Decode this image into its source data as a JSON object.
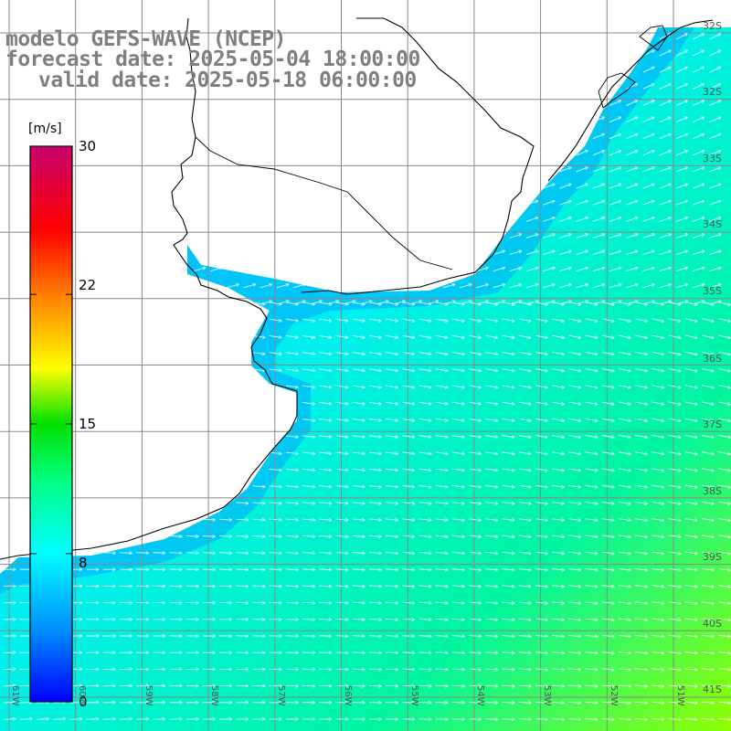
{
  "title": {
    "line1": "modelo GEFS-WAVE (NCEP)",
    "line2": "forecast date: 2025-05-04 18:00:00",
    "line3": "valid date: 2025-05-18 06:00:00"
  },
  "colorbar": {
    "unit": "[m/s]",
    "ticks": [
      {
        "label": "30",
        "value": 30
      },
      {
        "label": "22",
        "value": 22
      },
      {
        "label": "15",
        "value": 15
      },
      {
        "label": "8",
        "value": 8
      },
      {
        "label": "0",
        "value": 0
      }
    ],
    "colors": [
      "#0000ff",
      "#0088ff",
      "#00ffff",
      "#00ff00",
      "#ffff00",
      "#ff8000",
      "#ff0000",
      "#c8006e"
    ]
  },
  "map": {
    "lat_labels": [
      "32S",
      "33S",
      "34S",
      "35S",
      "36S",
      "37S",
      "38S",
      "39S",
      "40S",
      "41S"
    ],
    "lon_labels": [
      "61W",
      "60W",
      "59W",
      "58W",
      "57W",
      "56W",
      "55W",
      "54W",
      "53W",
      "52W",
      "51W"
    ],
    "land_color": "#ffffff",
    "grid_color": "#888888"
  }
}
